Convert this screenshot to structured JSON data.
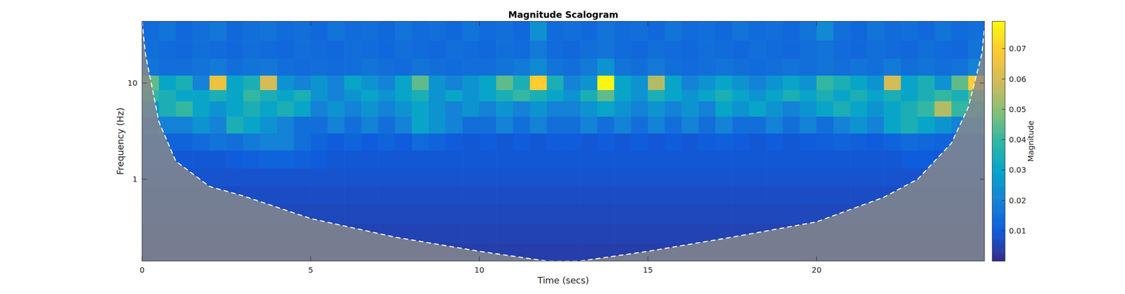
{
  "chart_data": {
    "type": "heatmap",
    "title": "Magnitude Scalogram",
    "x_label": "Time (secs)",
    "y_label": "Frequency (Hz)",
    "log": "y",
    "xlim": [
      0,
      24.98
    ],
    "ylim": [
      0.141,
      43.8
    ],
    "xticks": [
      0,
      5,
      10,
      15,
      20
    ],
    "yticks": [
      1,
      10
    ],
    "x_edges": [
      0,
      0.5,
      1,
      1.5,
      2,
      2.5,
      3,
      3.5,
      4,
      4.5,
      5,
      5.5,
      6,
      6.5,
      7,
      7.5,
      8,
      8.5,
      9,
      9.5,
      10,
      10.5,
      11,
      11.5,
      12,
      12.5,
      13,
      13.5,
      14,
      14.5,
      15,
      15.5,
      16,
      16.5,
      17,
      17.5,
      18,
      18.5,
      19,
      19.5,
      20,
      20.5,
      21,
      21.5,
      22,
      22.5,
      23,
      23.5,
      24,
      24.5,
      25
    ],
    "y_edges": [
      0.141,
      0.22,
      0.35,
      0.55,
      0.85,
      1.3,
      2,
      3,
      4.5,
      6.5,
      8.5,
      12,
      18,
      28,
      43.8
    ],
    "cells": [
      [
        0.004,
        0.004,
        0.004,
        0.004,
        0.004,
        0.004,
        0.004,
        0.004,
        0.004,
        0.004,
        0.004,
        0.004,
        0.004,
        0.004,
        0.004,
        0.004,
        0.004,
        0.004,
        0.004,
        0.004,
        0.004,
        0.004,
        0.004,
        0.004,
        0.004,
        0.004,
        0.004,
        0.004,
        0.004,
        0.004,
        0.004,
        0.004,
        0.004,
        0.004,
        0.004,
        0.004,
        0.004,
        0.004,
        0.004,
        0.004,
        0.004,
        0.004,
        0.004,
        0.004,
        0.004,
        0.004,
        0.004,
        0.004,
        0.004,
        0.004
      ],
      [
        0.005,
        0.005,
        0.005,
        0.005,
        0.005,
        0.005,
        0.005,
        0.005,
        0.005,
        0.005,
        0.005,
        0.005,
        0.005,
        0.005,
        0.005,
        0.005,
        0.005,
        0.005,
        0.005,
        0.005,
        0.005,
        0.005,
        0.005,
        0.005,
        0.005,
        0.005,
        0.005,
        0.005,
        0.005,
        0.005,
        0.005,
        0.005,
        0.005,
        0.005,
        0.005,
        0.005,
        0.005,
        0.005,
        0.005,
        0.005,
        0.005,
        0.005,
        0.005,
        0.005,
        0.005,
        0.005,
        0.005,
        0.005,
        0.005,
        0.005
      ],
      [
        0.006,
        0.006,
        0.006,
        0.006,
        0.006,
        0.006,
        0.006,
        0.006,
        0.006,
        0.006,
        0.006,
        0.006,
        0.006,
        0.006,
        0.006,
        0.006,
        0.006,
        0.006,
        0.006,
        0.006,
        0.006,
        0.006,
        0.006,
        0.006,
        0.006,
        0.006,
        0.006,
        0.006,
        0.006,
        0.006,
        0.006,
        0.006,
        0.006,
        0.006,
        0.006,
        0.006,
        0.006,
        0.006,
        0.006,
        0.006,
        0.006,
        0.006,
        0.006,
        0.006,
        0.006,
        0.006,
        0.006,
        0.006,
        0.006,
        0.006
      ],
      [
        0.007,
        0.007,
        0.007,
        0.007,
        0.007,
        0.007,
        0.007,
        0.007,
        0.007,
        0.007,
        0.007,
        0.007,
        0.007,
        0.007,
        0.007,
        0.007,
        0.007,
        0.007,
        0.007,
        0.007,
        0.007,
        0.007,
        0.007,
        0.007,
        0.007,
        0.007,
        0.007,
        0.007,
        0.007,
        0.007,
        0.007,
        0.007,
        0.007,
        0.007,
        0.007,
        0.007,
        0.007,
        0.007,
        0.007,
        0.007,
        0.007,
        0.007,
        0.007,
        0.007,
        0.007,
        0.007,
        0.007,
        0.007,
        0.007,
        0.007
      ],
      [
        0.008,
        0.008,
        0.008,
        0.008,
        0.008,
        0.008,
        0.008,
        0.008,
        0.008,
        0.008,
        0.008,
        0.008,
        0.008,
        0.008,
        0.008,
        0.008,
        0.008,
        0.008,
        0.008,
        0.008,
        0.008,
        0.008,
        0.008,
        0.008,
        0.008,
        0.008,
        0.008,
        0.008,
        0.008,
        0.008,
        0.008,
        0.008,
        0.008,
        0.008,
        0.008,
        0.008,
        0.008,
        0.008,
        0.008,
        0.008,
        0.008,
        0.008,
        0.008,
        0.008,
        0.008,
        0.008,
        0.008,
        0.008,
        0.008,
        0.008
      ],
      [
        0.009,
        0.009,
        0.009,
        0.009,
        0.009,
        0.01,
        0.011,
        0.012,
        0.012,
        0.011,
        0.01,
        0.009,
        0.009,
        0.009,
        0.009,
        0.009,
        0.009,
        0.009,
        0.009,
        0.009,
        0.009,
        0.009,
        0.009,
        0.009,
        0.009,
        0.009,
        0.009,
        0.009,
        0.009,
        0.009,
        0.009,
        0.009,
        0.009,
        0.009,
        0.009,
        0.009,
        0.009,
        0.009,
        0.009,
        0.009,
        0.009,
        0.009,
        0.009,
        0.009,
        0.009,
        0.01,
        0.01,
        0.009,
        0.009,
        0.009
      ],
      [
        0.01,
        0.012,
        0.012,
        0.014,
        0.016,
        0.015,
        0.018,
        0.02,
        0.02,
        0.015,
        0.012,
        0.01,
        0.012,
        0.01,
        0.012,
        0.01,
        0.014,
        0.012,
        0.01,
        0.009,
        0.01,
        0.009,
        0.01,
        0.009,
        0.01,
        0.01,
        0.009,
        0.01,
        0.009,
        0.01,
        0.009,
        0.01,
        0.009,
        0.01,
        0.011,
        0.01,
        0.009,
        0.01,
        0.009,
        0.01,
        0.011,
        0.012,
        0.011,
        0.01,
        0.012,
        0.014,
        0.013,
        0.012,
        0.011,
        0.01
      ],
      [
        0.015,
        0.02,
        0.02,
        0.025,
        0.02,
        0.035,
        0.03,
        0.025,
        0.02,
        0.015,
        0.015,
        0.02,
        0.015,
        0.02,
        0.015,
        0.02,
        0.03,
        0.025,
        0.02,
        0.015,
        0.015,
        0.02,
        0.015,
        0.02,
        0.015,
        0.015,
        0.02,
        0.015,
        0.02,
        0.015,
        0.02,
        0.015,
        0.02,
        0.015,
        0.02,
        0.015,
        0.015,
        0.02,
        0.015,
        0.02,
        0.015,
        0.02,
        0.025,
        0.02,
        0.03,
        0.035,
        0.03,
        0.025,
        0.02,
        0.02
      ],
      [
        0.025,
        0.035,
        0.04,
        0.03,
        0.025,
        0.03,
        0.035,
        0.03,
        0.035,
        0.03,
        0.02,
        0.025,
        0.02,
        0.025,
        0.02,
        0.025,
        0.03,
        0.025,
        0.02,
        0.025,
        0.02,
        0.025,
        0.02,
        0.025,
        0.02,
        0.02,
        0.025,
        0.03,
        0.025,
        0.02,
        0.025,
        0.02,
        0.025,
        0.02,
        0.03,
        0.025,
        0.03,
        0.025,
        0.02,
        0.025,
        0.03,
        0.035,
        0.03,
        0.025,
        0.03,
        0.035,
        0.04,
        0.055,
        0.04,
        0.035
      ],
      [
        0.04,
        0.035,
        0.03,
        0.03,
        0.035,
        0.03,
        0.04,
        0.035,
        0.03,
        0.035,
        0.025,
        0.02,
        0.025,
        0.03,
        0.025,
        0.03,
        0.035,
        0.025,
        0.03,
        0.025,
        0.03,
        0.035,
        0.04,
        0.035,
        0.03,
        0.025,
        0.035,
        0.045,
        0.03,
        0.025,
        0.035,
        0.03,
        0.025,
        0.03,
        0.035,
        0.03,
        0.025,
        0.03,
        0.035,
        0.03,
        0.035,
        0.03,
        0.035,
        0.03,
        0.035,
        0.03,
        0.035,
        0.04,
        0.035,
        0.045
      ],
      [
        0.045,
        0.03,
        0.035,
        0.02,
        0.065,
        0.03,
        0.035,
        0.06,
        0.025,
        0.02,
        0.025,
        0.02,
        0.03,
        0.025,
        0.02,
        0.03,
        0.045,
        0.025,
        0.02,
        0.025,
        0.03,
        0.045,
        0.035,
        0.07,
        0.035,
        0.02,
        0.025,
        0.078,
        0.03,
        0.025,
        0.055,
        0.03,
        0.02,
        0.025,
        0.03,
        0.025,
        0.02,
        0.025,
        0.03,
        0.025,
        0.04,
        0.035,
        0.03,
        0.025,
        0.06,
        0.03,
        0.035,
        0.025,
        0.045,
        0.07
      ],
      [
        0.016,
        0.015,
        0.015,
        0.016,
        0.018,
        0.015,
        0.016,
        0.017,
        0.015,
        0.014,
        0.015,
        0.014,
        0.015,
        0.016,
        0.015,
        0.014,
        0.016,
        0.015,
        0.014,
        0.015,
        0.015,
        0.016,
        0.018,
        0.022,
        0.016,
        0.015,
        0.018,
        0.025,
        0.016,
        0.015,
        0.018,
        0.015,
        0.014,
        0.015,
        0.016,
        0.015,
        0.014,
        0.015,
        0.016,
        0.015,
        0.016,
        0.015,
        0.016,
        0.015,
        0.018,
        0.015,
        0.016,
        0.015,
        0.016,
        0.02
      ],
      [
        0.015,
        0.014,
        0.013,
        0.015,
        0.014,
        0.013,
        0.015,
        0.014,
        0.013,
        0.015,
        0.014,
        0.013,
        0.015,
        0.014,
        0.013,
        0.015,
        0.014,
        0.013,
        0.015,
        0.014,
        0.013,
        0.015,
        0.014,
        0.018,
        0.014,
        0.013,
        0.015,
        0.016,
        0.014,
        0.013,
        0.015,
        0.014,
        0.013,
        0.015,
        0.014,
        0.013,
        0.015,
        0.014,
        0.013,
        0.015,
        0.016,
        0.014,
        0.013,
        0.015,
        0.014,
        0.013,
        0.015,
        0.014,
        0.013,
        0.016
      ],
      [
        0.014,
        0.016,
        0.013,
        0.015,
        0.017,
        0.013,
        0.015,
        0.016,
        0.014,
        0.015,
        0.013,
        0.016,
        0.014,
        0.015,
        0.013,
        0.016,
        0.014,
        0.015,
        0.013,
        0.016,
        0.014,
        0.015,
        0.013,
        0.024,
        0.014,
        0.015,
        0.013,
        0.016,
        0.014,
        0.015,
        0.013,
        0.016,
        0.014,
        0.015,
        0.013,
        0.016,
        0.014,
        0.015,
        0.013,
        0.016,
        0.022,
        0.015,
        0.013,
        0.016,
        0.014,
        0.015,
        0.013,
        0.016,
        0.014,
        0.015
      ]
    ],
    "coi": {
      "x": [
        0,
        0.1,
        0.5,
        1,
        2,
        3,
        5,
        7.5,
        10,
        12,
        13,
        15,
        17.5,
        20,
        22,
        23,
        24,
        24.5,
        24.9,
        25
      ],
      "y": [
        43.8,
        20,
        3.95,
        1.54,
        0.84,
        0.67,
        0.39,
        0.25,
        0.178,
        0.141,
        0.141,
        0.178,
        0.25,
        0.36,
        0.65,
        1.0,
        2.37,
        5.6,
        20,
        43.8
      ]
    },
    "colorbar": {
      "label": "Magnitude",
      "lim": [
        0,
        0.079
      ],
      "ticks": [
        0.01,
        0.02,
        0.03,
        0.04,
        0.05,
        0.06,
        0.07
      ]
    }
  }
}
